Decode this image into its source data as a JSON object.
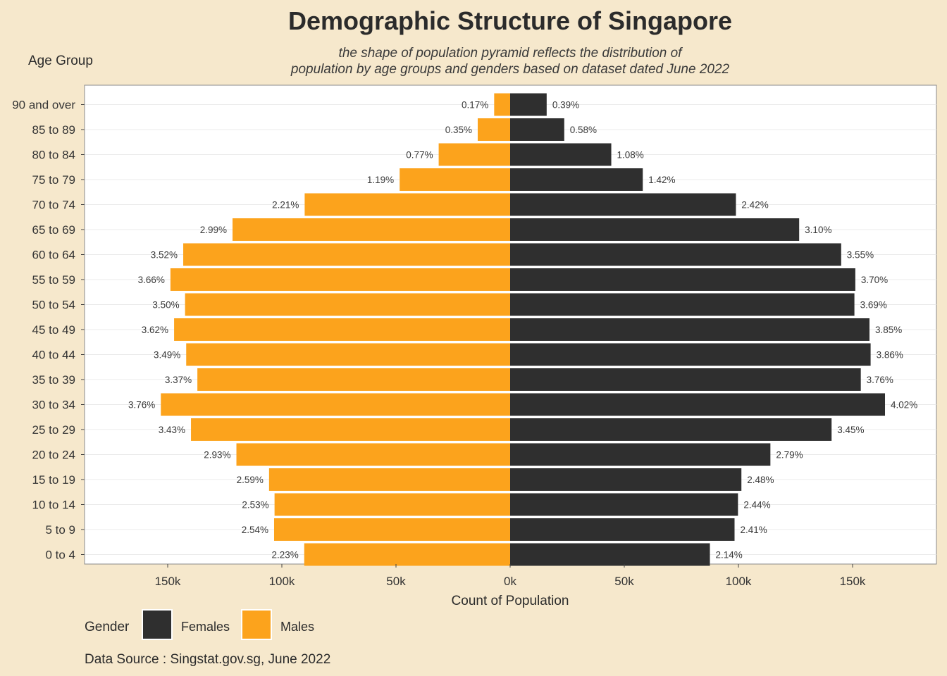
{
  "chart_data": {
    "type": "bar",
    "orientation": "horizontal",
    "title": "Demographic Structure of Singapore",
    "subtitle_lines": [
      "the shape of population pyramid reflects the distribution of",
      "population by age groups and genders based on dataset dated June 2022"
    ],
    "ylabel": "Age Group",
    "xlabel": "Count of Population",
    "xlim": [
      -185000,
      185000
    ],
    "x_ticks": [
      -150000,
      -100000,
      -50000,
      0,
      50000,
      100000,
      150000
    ],
    "x_tick_labels": [
      "150k",
      "100k",
      "50k",
      "0k",
      "50k",
      "100k",
      "150k"
    ],
    "categories": [
      "0 to 4",
      "5 to 9",
      "10 to 14",
      "15 to 19",
      "20 to 24",
      "25 to 29",
      "30 to 34",
      "35 to 39",
      "40 to 44",
      "45 to 49",
      "50 to 54",
      "55 to 59",
      "60 to 64",
      "65 to 69",
      "70 to 74",
      "75 to 79",
      "80 to 84",
      "85 to 89",
      "90 and over"
    ],
    "series": [
      {
        "name": "Females",
        "color": "#2f2f2f",
        "values": [
          87500,
          98300,
          99800,
          101300,
          114000,
          140800,
          164200,
          153600,
          157900,
          157400,
          150800,
          151200,
          145000,
          126600,
          98900,
          58100,
          44300,
          23700,
          16000
        ],
        "labels": [
          "2.14%",
          "2.41%",
          "2.44%",
          "2.48%",
          "2.79%",
          "3.45%",
          "4.02%",
          "3.76%",
          "3.86%",
          "3.85%",
          "3.69%",
          "3.70%",
          "3.55%",
          "3.10%",
          "2.42%",
          "1.42%",
          "1.08%",
          "0.58%",
          "0.39%"
        ]
      },
      {
        "name": "Males",
        "color": "#fca31c",
        "values": [
          90200,
          103400,
          103200,
          105600,
          119900,
          139800,
          153000,
          137000,
          141900,
          147200,
          142400,
          148800,
          143200,
          121600,
          90000,
          48400,
          31300,
          14200,
          7000
        ],
        "labels": [
          "2.23%",
          "2.54%",
          "2.53%",
          "2.59%",
          "2.93%",
          "3.43%",
          "3.76%",
          "3.37%",
          "3.49%",
          "3.62%",
          "3.50%",
          "3.66%",
          "3.52%",
          "2.99%",
          "2.21%",
          "1.19%",
          "0.77%",
          "0.35%",
          "0.17%"
        ]
      }
    ],
    "legend": {
      "title": "Gender",
      "position": "bottom-left",
      "entries": [
        {
          "label": "Females",
          "color": "#2f2f2f"
        },
        {
          "label": "Males",
          "color": "#fca31c"
        }
      ]
    },
    "grid": true,
    "caption": "Data Source : Singstat.gov.sg, June 2022"
  }
}
